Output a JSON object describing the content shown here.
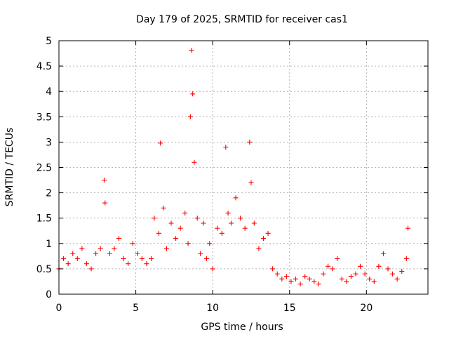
{
  "chart_data": {
    "type": "scatter",
    "title": "Day 179 of 2025, SRMTID for receiver cas1",
    "xlabel": "GPS time / hours",
    "ylabel": "SRMTID / TECUs",
    "xlim": [
      0,
      24
    ],
    "ylim": [
      0,
      5
    ],
    "grid": true,
    "marker": "+",
    "x_ticks": [
      0,
      5,
      10,
      15,
      20
    ],
    "x_tick_labels": [
      "0",
      "5",
      "10",
      "15",
      "20"
    ],
    "y_ticks": [
      0,
      0.5,
      1,
      1.5,
      2,
      2.5,
      3,
      3.5,
      4,
      4.5,
      5
    ],
    "y_tick_labels": [
      "0",
      "0.5",
      "1",
      "1.5",
      "2",
      "2.5",
      "3",
      "3.5",
      "4",
      "4.5",
      "5"
    ],
    "series": [
      {
        "name": "cas1",
        "color": "#ff0000",
        "x": [
          0.0,
          0.3,
          0.6,
          0.9,
          1.2,
          1.5,
          1.8,
          2.1,
          2.4,
          2.7,
          2.95,
          3.0,
          3.3,
          3.6,
          3.9,
          4.2,
          4.5,
          4.8,
          5.1,
          5.4,
          5.7,
          6.0,
          6.2,
          6.5,
          6.6,
          6.8,
          7.0,
          7.3,
          7.6,
          7.9,
          8.2,
          8.4,
          8.55,
          8.62,
          8.7,
          8.8,
          9.0,
          9.2,
          9.4,
          9.6,
          9.8,
          10.0,
          10.3,
          10.6,
          10.85,
          11.0,
          11.2,
          11.5,
          11.8,
          12.1,
          12.4,
          12.5,
          12.7,
          13.0,
          13.3,
          13.6,
          13.9,
          14.2,
          14.5,
          14.8,
          15.1,
          15.4,
          15.7,
          16.0,
          16.3,
          16.6,
          16.9,
          17.2,
          17.5,
          17.8,
          18.1,
          18.4,
          18.7,
          19.0,
          19.3,
          19.6,
          19.9,
          20.2,
          20.5,
          20.8,
          21.1,
          21.4,
          21.7,
          22.0,
          22.3,
          22.6,
          22.7
        ],
        "y": [
          0.5,
          0.7,
          0.6,
          0.8,
          0.7,
          0.9,
          0.6,
          0.5,
          0.8,
          0.9,
          2.25,
          1.8,
          0.8,
          0.9,
          1.1,
          0.7,
          0.6,
          1.0,
          0.8,
          0.7,
          0.6,
          0.7,
          1.5,
          1.2,
          2.98,
          1.7,
          0.9,
          1.4,
          1.1,
          1.3,
          1.6,
          1.0,
          3.5,
          4.81,
          3.95,
          2.6,
          1.5,
          0.8,
          1.4,
          0.7,
          1.0,
          0.5,
          1.3,
          1.2,
          2.9,
          1.6,
          1.4,
          1.9,
          1.5,
          1.3,
          3.0,
          2.2,
          1.4,
          0.9,
          1.1,
          1.2,
          0.5,
          0.4,
          0.3,
          0.35,
          0.25,
          0.3,
          0.2,
          0.35,
          0.3,
          0.25,
          0.2,
          0.4,
          0.55,
          0.5,
          0.7,
          0.3,
          0.25,
          0.35,
          0.4,
          0.55,
          0.4,
          0.3,
          0.25,
          0.55,
          0.8,
          0.5,
          0.4,
          0.3,
          0.45,
          0.7,
          1.3
        ]
      }
    ]
  }
}
